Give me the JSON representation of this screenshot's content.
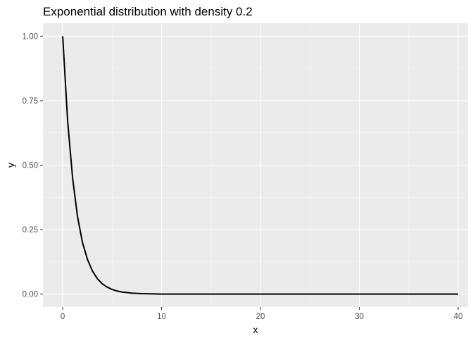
{
  "chart_data": {
    "type": "line",
    "title": "Exponential distribution with density 0.2",
    "xlabel": "x",
    "ylabel": "y",
    "xlim": [
      -2,
      41
    ],
    "ylim": [
      -0.05,
      1.05
    ],
    "x_ticks": [
      0,
      10,
      20,
      30,
      40
    ],
    "x_tick_labels": [
      "0",
      "10",
      "20",
      "30",
      "40"
    ],
    "y_ticks": [
      0,
      0.25,
      0.5,
      0.75,
      1
    ],
    "y_tick_labels": [
      "0.00",
      "0.25",
      "0.50",
      "0.75",
      "1.00"
    ],
    "grid": true,
    "legend": "none",
    "series": [
      {
        "x": [
          0,
          0.5,
          1,
          1.5,
          2,
          2.5,
          3,
          3.5,
          4,
          4.5,
          5,
          5.5,
          6,
          7,
          8,
          10,
          15,
          20,
          25,
          30,
          35,
          40
        ],
        "values": [
          1.0,
          0.67,
          0.45,
          0.3,
          0.2,
          0.135,
          0.09,
          0.06,
          0.04,
          0.027,
          0.018,
          0.012,
          0.008,
          0.004,
          0.002,
          0.0,
          0.0,
          0.0,
          0.0,
          0.0,
          0.0,
          0.0
        ]
      }
    ],
    "colors": {
      "panel_background": "#EBEBEB",
      "grid_major": "#FFFFFF",
      "grid_minor": "#F5F5F5",
      "line": "#000000",
      "tick": "#333333"
    }
  }
}
